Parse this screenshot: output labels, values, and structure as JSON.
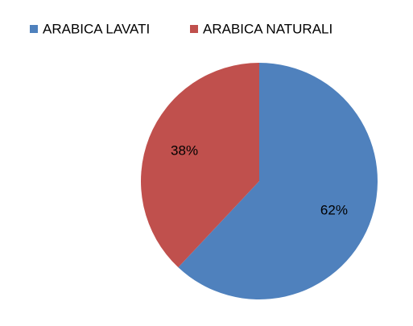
{
  "chart_data": {
    "type": "pie",
    "categories": [
      "ARABICA LAVATI",
      "ARABICA NATURALI"
    ],
    "values": [
      62,
      38
    ],
    "value_labels": [
      "62%",
      "38%"
    ],
    "colors": [
      "#4f81bd",
      "#c0504d"
    ]
  }
}
